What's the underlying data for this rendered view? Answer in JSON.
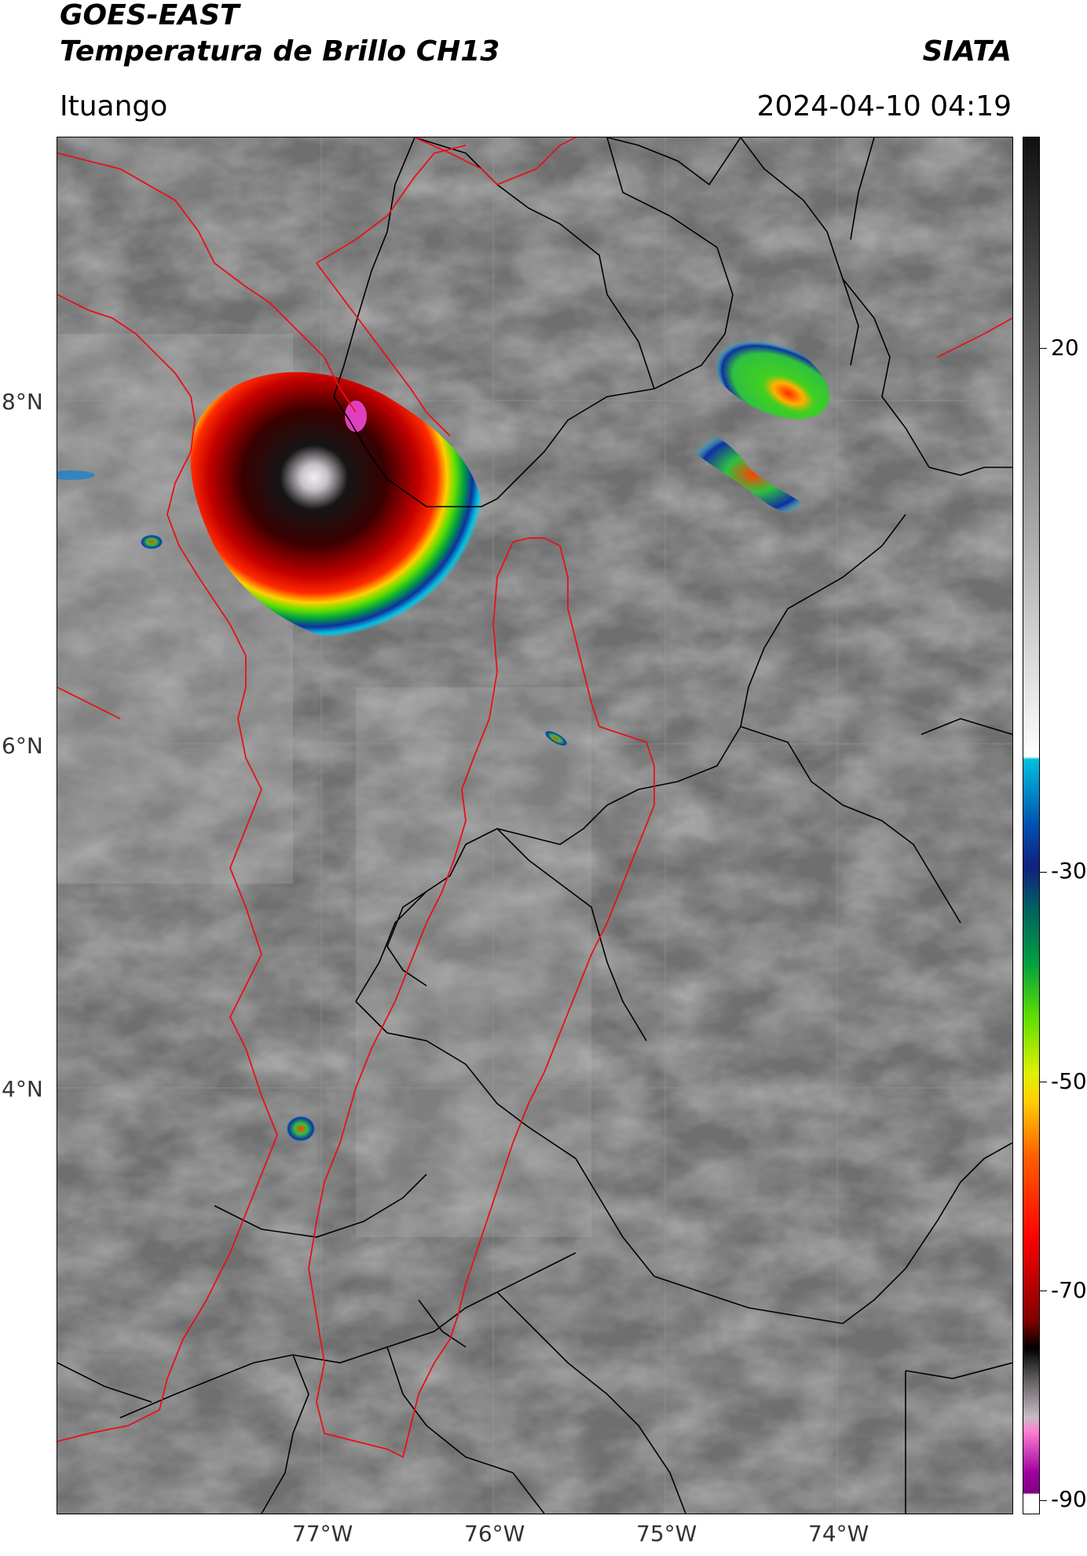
{
  "header": {
    "title_line1": "GOES-EAST",
    "title_line2": "Temperatura de Brillo CH13",
    "site": "SIATA",
    "region": "Ituango",
    "datetime": "2024-04-10 04:19"
  },
  "map": {
    "lat_ticks": [
      "8°N",
      "6°N",
      "4°N"
    ],
    "lon_ticks": [
      "77°W",
      "76°W",
      "75°W",
      "74°W"
    ],
    "border_color": "#000000",
    "basin_color": "#e8101a",
    "graticule_color": "#9a9a9a"
  },
  "colorbar": {
    "ticks": [
      "20",
      "-30",
      "-50",
      "-70",
      "-90"
    ],
    "min": -90,
    "max": 40,
    "unit_values": [
      20,
      -30,
      -50,
      -70,
      -90
    ]
  }
}
